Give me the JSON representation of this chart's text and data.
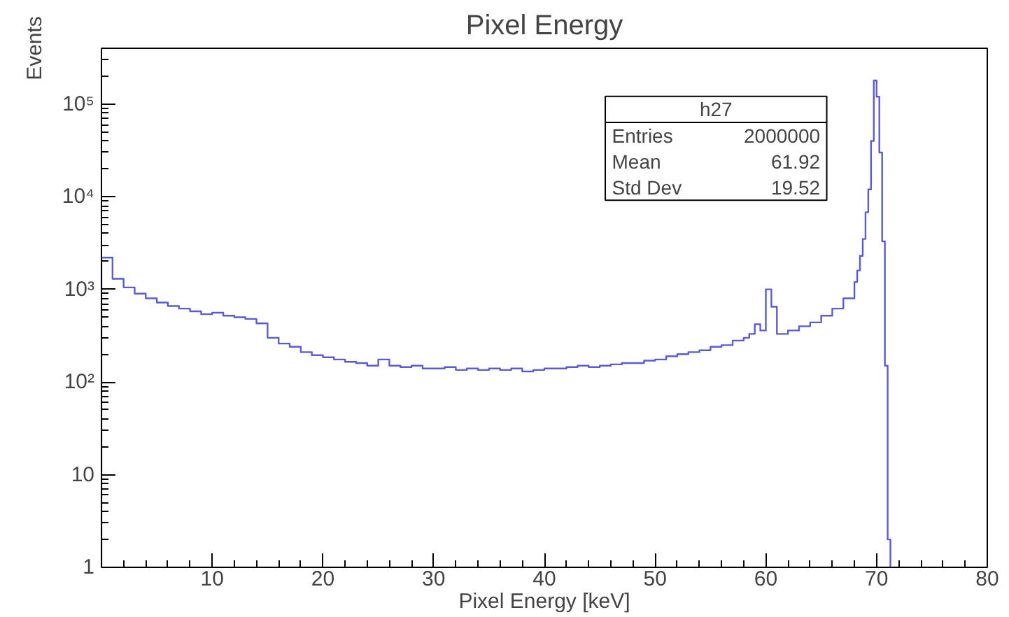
{
  "chart_data": {
    "type": "histogram",
    "title": "Pixel Energy",
    "xlabel": "Pixel Energy [keV]",
    "ylabel": "Events",
    "color": "#5b5bd6",
    "bins": [
      0,
      1,
      2,
      3,
      4,
      5,
      6,
      7,
      8,
      9,
      10,
      11,
      12,
      13,
      14,
      15,
      16,
      17,
      18,
      19,
      20,
      21,
      22,
      23,
      24,
      25,
      26,
      27,
      28,
      29,
      30,
      31,
      32,
      33,
      34,
      35,
      36,
      37,
      38,
      39,
      40,
      41,
      42,
      43,
      44,
      45,
      46,
      47,
      48,
      49,
      50,
      51,
      52,
      53,
      54,
      55,
      56,
      57,
      58,
      58.5,
      59,
      59.5,
      60,
      60.5,
      61,
      62,
      63,
      64,
      65,
      66,
      67,
      68,
      68.25,
      68.5,
      68.75,
      69,
      69.25,
      69.5,
      69.75,
      70,
      70.25,
      70.5,
      70.75,
      71,
      71.25
    ],
    "values": [
      2200,
      1300,
      1050,
      900,
      800,
      720,
      660,
      620,
      580,
      540,
      560,
      520,
      500,
      480,
      430,
      300,
      260,
      240,
      210,
      195,
      185,
      175,
      165,
      160,
      150,
      175,
      150,
      145,
      150,
      140,
      140,
      145,
      135,
      140,
      135,
      140,
      135,
      140,
      130,
      135,
      140,
      140,
      145,
      150,
      145,
      150,
      155,
      160,
      160,
      170,
      175,
      190,
      200,
      210,
      220,
      240,
      250,
      280,
      300,
      330,
      420,
      360,
      1000,
      650,
      330,
      360,
      400,
      440,
      520,
      620,
      800,
      1200,
      1600,
      2300,
      3500,
      6800,
      12000,
      40000,
      180000,
      120000,
      30000,
      3300,
      150,
      2
    ],
    "xlim": [
      0,
      80
    ],
    "xticks": [
      {
        "value": 0,
        "label": null
      },
      10,
      20,
      30,
      40,
      50,
      60,
      70,
      80
    ],
    "log": "y",
    "ylim": [
      1,
      400000
    ],
    "yticks": [
      1,
      10,
      {
        "value": 100,
        "label": "10²"
      },
      {
        "value": 1000,
        "label": "10³"
      },
      {
        "value": 10000,
        "label": "10⁴"
      },
      {
        "value": 100000,
        "label": "10⁵"
      }
    ],
    "grid": false,
    "annotations": [
      "h27",
      "Entries 2000000",
      "Mean 61.92",
      "Std Dev 19.52"
    ]
  }
}
